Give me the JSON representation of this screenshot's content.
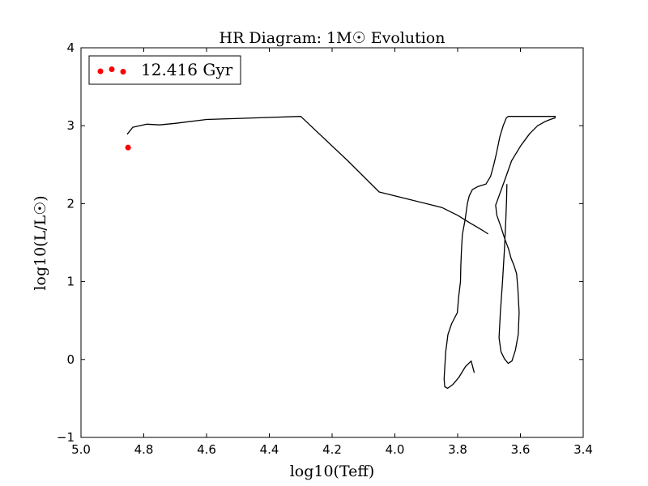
{
  "chart_data": {
    "type": "line",
    "title": "HR Diagram: 1M☉ Evolution",
    "xlabel": "log10(Teff)",
    "ylabel": "log10(L/L☉)",
    "xlim": [
      5.0,
      3.4
    ],
    "ylim": [
      -1,
      4
    ],
    "x_ticks": [
      "5.0",
      "4.8",
      "4.6",
      "4.4",
      "4.2",
      "4.0",
      "3.8",
      "3.6",
      "3.4"
    ],
    "y_ticks": [
      "−1",
      "0",
      "1",
      "2",
      "3",
      "4"
    ],
    "grid": false,
    "legend_position": "top-left",
    "series": [
      {
        "color": "#000000",
        "x": [
          3.747,
          3.757,
          3.775,
          3.796,
          3.815,
          3.832,
          3.841,
          3.843,
          3.841,
          3.838,
          3.831,
          3.819,
          3.801,
          3.797,
          3.791,
          3.79,
          3.788,
          3.785,
          3.776,
          3.769,
          3.763,
          3.753,
          3.735,
          3.71,
          3.695,
          3.685,
          3.676,
          3.666,
          3.655,
          3.645,
          3.639,
          3.638,
          3.637,
          3.633,
          3.625,
          3.614,
          3.594,
          3.574,
          3.552,
          3.53,
          3.512,
          3.498,
          3.489,
          3.49,
          3.505,
          3.523,
          3.545,
          3.57,
          3.598,
          3.628,
          3.65,
          3.668,
          3.679,
          3.675,
          3.662,
          3.65,
          3.638,
          3.63,
          3.62,
          3.612,
          3.608,
          3.604,
          3.607,
          3.616,
          3.627,
          3.639,
          3.651,
          3.662,
          3.668,
          3.664,
          3.657,
          3.651,
          3.647,
          3.644,
          3.643
        ],
        "y": [
          -0.17,
          -0.02,
          -0.09,
          -0.23,
          -0.32,
          -0.37,
          -0.35,
          -0.25,
          -0.1,
          0.1,
          0.32,
          0.46,
          0.6,
          0.8,
          1.0,
          1.2,
          1.4,
          1.6,
          1.8,
          2.0,
          2.1,
          2.18,
          2.22,
          2.25,
          2.35,
          2.5,
          2.65,
          2.85,
          3.0,
          3.1,
          3.12,
          3.12,
          3.12,
          3.12,
          3.12,
          3.12,
          3.12,
          3.12,
          3.12,
          3.12,
          3.12,
          3.12,
          3.12,
          3.1,
          3.08,
          3.05,
          3.0,
          2.9,
          2.75,
          2.55,
          2.3,
          2.1,
          1.98,
          1.85,
          1.7,
          1.55,
          1.42,
          1.3,
          1.2,
          1.1,
          0.9,
          0.6,
          0.32,
          0.12,
          -0.02,
          -0.05,
          0.01,
          0.1,
          0.28,
          0.6,
          1.0,
          1.4,
          1.75,
          2.05,
          2.25
        ]
      },
      {
        "color": "#000000",
        "x": [
          3.703,
          3.71,
          3.73,
          3.76,
          3.8,
          3.85,
          3.95,
          4.05,
          4.15,
          4.3,
          4.45,
          4.6,
          4.7,
          4.75,
          4.79,
          4.835,
          4.853
        ],
        "y": [
          1.61,
          1.63,
          1.68,
          1.75,
          1.85,
          1.95,
          2.05,
          2.15,
          2.55,
          3.12,
          3.1,
          3.08,
          3.03,
          3.01,
          3.02,
          2.98,
          2.89
        ]
      }
    ],
    "current_point": {
      "x": 4.85,
      "y": 2.72,
      "color": "#ff0000"
    },
    "legend": {
      "entries": [
        {
          "label": "12.416 Gyr",
          "color": "#ff0000",
          "marker": "scatter"
        }
      ]
    }
  }
}
